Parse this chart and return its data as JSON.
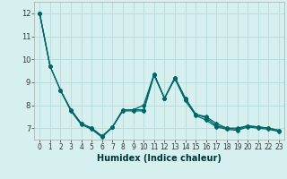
{
  "xlabel": "Humidex (Indice chaleur)",
  "bg_color": "#d6f0f0",
  "grid_color": "#b8dada",
  "line_color": "#006666",
  "xlim": [
    -0.5,
    23.5
  ],
  "ylim": [
    6.5,
    12.5
  ],
  "yticks": [
    7,
    8,
    9,
    10,
    11,
    12
  ],
  "xticks": [
    0,
    1,
    2,
    3,
    4,
    5,
    6,
    7,
    8,
    9,
    10,
    11,
    12,
    13,
    14,
    15,
    16,
    17,
    18,
    19,
    20,
    21,
    22,
    23
  ],
  "series": [
    [
      12.0,
      9.7,
      null,
      null,
      null,
      null,
      null,
      null,
      null,
      null,
      null,
      null,
      null,
      null,
      null,
      null,
      null,
      null,
      null,
      null,
      null,
      null,
      null,
      null
    ],
    [
      12.0,
      9.7,
      8.65,
      7.8,
      7.2,
      7.0,
      6.65,
      7.05,
      7.8,
      7.8,
      7.8,
      9.35,
      8.3,
      9.2,
      8.3,
      7.6,
      7.45,
      7.1,
      7.0,
      6.95,
      7.1,
      7.05,
      7.0,
      6.9
    ],
    [
      12.0,
      9.7,
      8.65,
      7.8,
      7.2,
      7.0,
      6.65,
      7.05,
      7.8,
      7.8,
      8.0,
      9.35,
      8.3,
      9.2,
      8.3,
      7.6,
      7.5,
      7.2,
      7.0,
      7.0,
      7.1,
      7.05,
      7.0,
      6.9
    ],
    [
      null,
      null,
      8.65,
      7.75,
      7.15,
      6.95,
      6.6,
      7.05,
      7.75,
      7.75,
      7.75,
      9.3,
      8.3,
      9.15,
      8.2,
      7.55,
      7.35,
      7.05,
      6.95,
      6.9,
      7.05,
      7.0,
      6.95,
      6.85
    ]
  ],
  "marker": "D",
  "markersize": 2.0,
  "linewidth": 0.9,
  "tick_fontsize": 5.5,
  "xlabel_fontsize": 7.0
}
